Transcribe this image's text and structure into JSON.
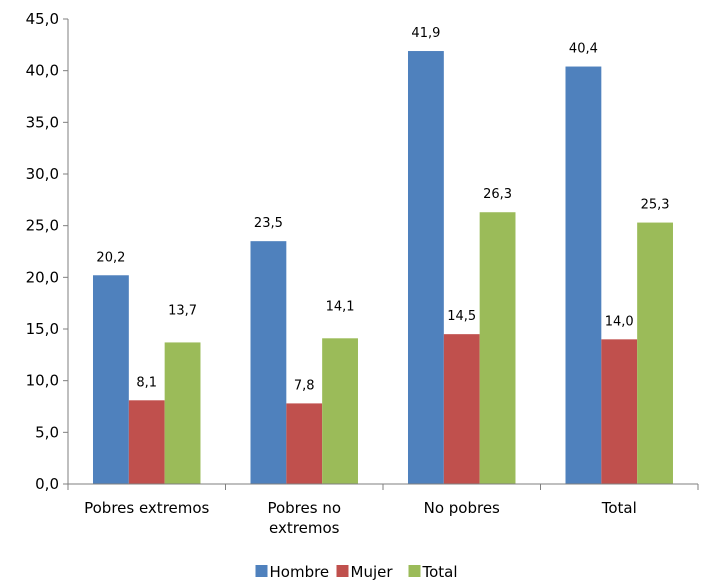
{
  "chart_data": {
    "type": "bar",
    "categories": [
      [
        "Pobres extremos"
      ],
      [
        "Pobres no",
        "extremos"
      ],
      [
        "No pobres"
      ],
      [
        "Total"
      ]
    ],
    "series": [
      {
        "name": "Hombre",
        "color": "#4f81bd",
        "values": [
          20.2,
          23.5,
          41.9,
          40.4
        ],
        "labels": [
          "20,2",
          "23,5",
          "41,9",
          "40,4"
        ]
      },
      {
        "name": "Mujer",
        "color": "#c0504d",
        "values": [
          8.1,
          7.8,
          14.5,
          14.0
        ],
        "labels": [
          "8,1",
          "7,8",
          "14,5",
          "14,0"
        ]
      },
      {
        "name": "Total",
        "color": "#9bbb59",
        "values": [
          13.7,
          14.1,
          26.3,
          25.3
        ],
        "labels": [
          "13,7",
          "14,1",
          "26,3",
          "25,3"
        ]
      }
    ],
    "ylim": [
      0,
      45
    ],
    "yticks": [
      0,
      5,
      10,
      15,
      20,
      25,
      30,
      35,
      40,
      45
    ],
    "ytick_labels": [
      "0,0",
      "5,0",
      "10,0",
      "15,0",
      "20,0",
      "25,0",
      "30,0",
      "35,0",
      "40,0",
      "45,0"
    ],
    "grid": false,
    "legend": "bottom",
    "title": "",
    "xlabel": "",
    "ylabel": ""
  }
}
